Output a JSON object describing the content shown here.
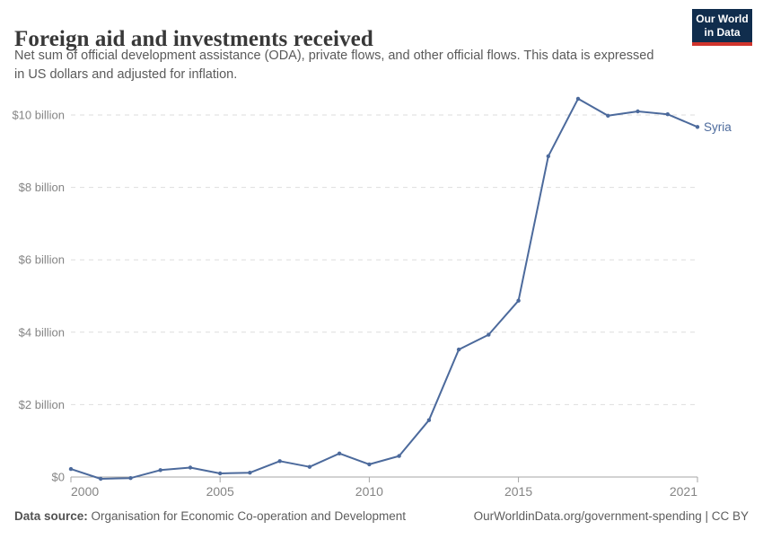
{
  "header": {
    "title": "Foreign aid and investments received",
    "subtitle_lines": [
      "Net sum of official development assistance (ODA), private flows, and other official flows. This data is expressed",
      "in US dollars and adjusted for inflation."
    ],
    "logo": {
      "line1": "Our World",
      "line2": "in Data"
    }
  },
  "chart_data": {
    "type": "line",
    "title": "Foreign aid and investments received",
    "unit": "US dollars (billions), inflation adjusted",
    "x_range": [
      2000,
      2021
    ],
    "y_range_billions": [
      0,
      10.45
    ],
    "grid": "dashed-horizontal",
    "legend_position": "end-of-line-label",
    "colors": {
      "line": "#4c6a9c",
      "gridline": "#dedede",
      "axis": "#a5a5a5",
      "tick_label": "#858585"
    },
    "yticks": [
      {
        "value": 0,
        "label": "$0"
      },
      {
        "value": 2,
        "label": "$2 billion"
      },
      {
        "value": 4,
        "label": "$4 billion"
      },
      {
        "value": 6,
        "label": "$6 billion"
      },
      {
        "value": 8,
        "label": "$8 billion"
      },
      {
        "value": 10,
        "label": "$10 billion"
      }
    ],
    "xticks": [
      {
        "value": 2000,
        "label": "2000"
      },
      {
        "value": 2005,
        "label": "2005"
      },
      {
        "value": 2010,
        "label": "2010"
      },
      {
        "value": 2015,
        "label": "2015"
      },
      {
        "value": 2021,
        "label": "2021"
      }
    ],
    "series": [
      {
        "name": "Syria",
        "color": "#4c6a9c",
        "x": [
          2000,
          2001,
          2002,
          2003,
          2004,
          2005,
          2006,
          2007,
          2008,
          2009,
          2010,
          2011,
          2012,
          2013,
          2014,
          2015,
          2016,
          2017,
          2018,
          2019,
          2020,
          2021
        ],
        "values_billion_usd": [
          0.22,
          -0.05,
          -0.03,
          0.19,
          0.26,
          0.1,
          0.12,
          0.44,
          0.28,
          0.65,
          0.35,
          0.58,
          1.57,
          3.52,
          3.93,
          4.87,
          8.86,
          10.45,
          9.98,
          10.1,
          10.02,
          9.67
        ]
      }
    ]
  },
  "footer": {
    "datasource_label": "Data source:",
    "datasource_value": "Organisation for Economic Co-operation and Development",
    "right_text": "OurWorldinData.org/government-spending | CC BY"
  }
}
